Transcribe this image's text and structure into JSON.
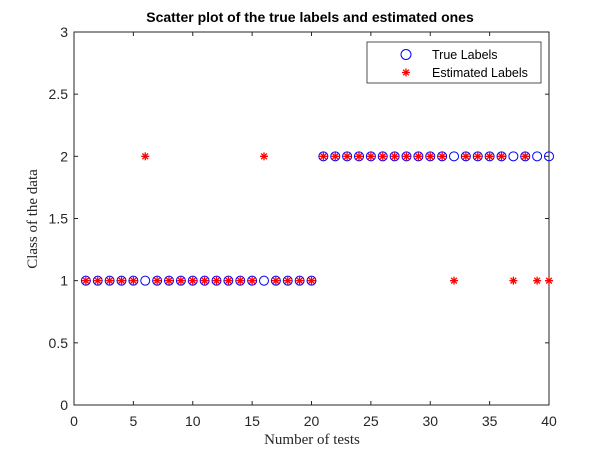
{
  "chart_data": {
    "type": "scatter",
    "title": "Scatter plot of the true labels and estimated ones",
    "xlabel": "Number of tests",
    "ylabel": "Class of the data",
    "xlim": [
      0,
      40
    ],
    "ylim": [
      0,
      3
    ],
    "xticks": [
      0,
      5,
      10,
      15,
      20,
      25,
      30,
      35,
      40
    ],
    "xtick_labels": [
      "0",
      "5",
      "10",
      "15",
      "20",
      "25",
      "30",
      "35",
      "40"
    ],
    "yticks": [
      0,
      0.5,
      1,
      1.5,
      2,
      2.5,
      3
    ],
    "ytick_labels": [
      "0",
      "0.5",
      "1",
      "1.5",
      "2",
      "2.5",
      "3"
    ],
    "grid": false,
    "legend_position": "top-right",
    "series": [
      {
        "name": "True Labels",
        "marker": "circle",
        "color": "#0000ff",
        "x": [
          1,
          2,
          3,
          4,
          5,
          6,
          7,
          8,
          9,
          10,
          11,
          12,
          13,
          14,
          15,
          16,
          17,
          18,
          19,
          20,
          21,
          22,
          23,
          24,
          25,
          26,
          27,
          28,
          29,
          30,
          31,
          32,
          33,
          34,
          35,
          36,
          37,
          38,
          39,
          40
        ],
        "y": [
          1,
          1,
          1,
          1,
          1,
          1,
          1,
          1,
          1,
          1,
          1,
          1,
          1,
          1,
          1,
          1,
          1,
          1,
          1,
          1,
          2,
          2,
          2,
          2,
          2,
          2,
          2,
          2,
          2,
          2,
          2,
          2,
          2,
          2,
          2,
          2,
          2,
          2,
          2,
          2
        ]
      },
      {
        "name": "Estimated Labels",
        "marker": "asterisk",
        "color": "#ff0000",
        "x": [
          1,
          2,
          3,
          4,
          5,
          6,
          7,
          8,
          9,
          10,
          11,
          12,
          13,
          14,
          15,
          16,
          17,
          18,
          19,
          20,
          21,
          22,
          23,
          24,
          25,
          26,
          27,
          28,
          29,
          30,
          31,
          32,
          33,
          34,
          35,
          36,
          37,
          38,
          39,
          40
        ],
        "y": [
          1,
          1,
          1,
          1,
          1,
          2,
          1,
          1,
          1,
          1,
          1,
          1,
          1,
          1,
          1,
          2,
          1,
          1,
          1,
          1,
          2,
          2,
          2,
          2,
          2,
          2,
          2,
          2,
          2,
          2,
          2,
          1,
          2,
          2,
          2,
          2,
          1,
          2,
          1,
          1
        ]
      }
    ]
  }
}
